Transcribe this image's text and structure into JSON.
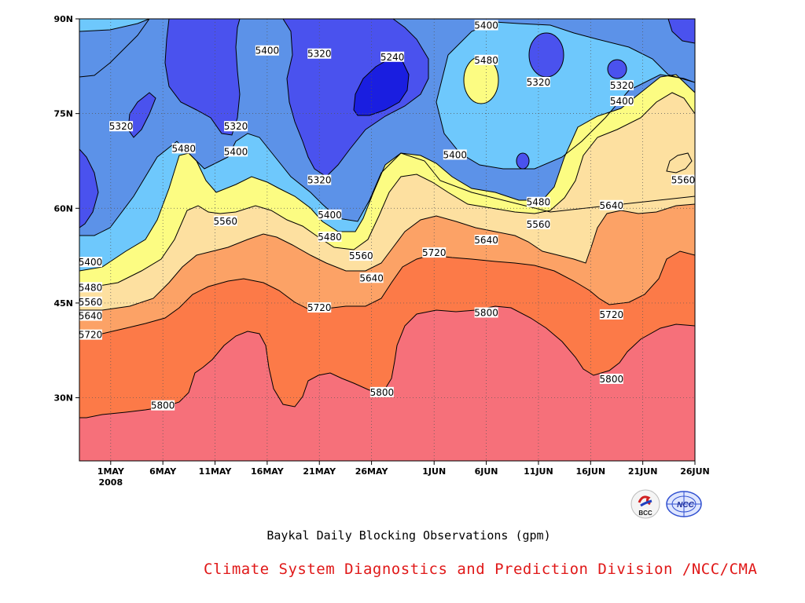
{
  "chart_data": {
    "type": "contour",
    "xaxis": {
      "ticks": [
        "1MAY",
        "6MAY",
        "11MAY",
        "16MAY",
        "21MAY",
        "26MAY",
        "1JUN",
        "6JUN",
        "11JUN",
        "16JUN",
        "21JUN",
        "26JUN"
      ],
      "year_label": "2008",
      "range": [
        "2008-04-28",
        "2008-06-26"
      ]
    },
    "yaxis": {
      "ticks": [
        "30N",
        "45N",
        "60N",
        "75N",
        "90N"
      ],
      "range": [
        20,
        90
      ]
    },
    "grid": "dotted",
    "levels": [
      5240,
      5320,
      5400,
      5480,
      5560,
      5640,
      5720,
      5800
    ],
    "contour_labels": [
      {
        "text": "5400",
        "date": "2008-06-06",
        "lat": 89
      },
      {
        "text": "5400",
        "date": "2008-05-16",
        "lat": 85
      },
      {
        "text": "5320",
        "date": "2008-05-21",
        "lat": 84.5
      },
      {
        "text": "5240",
        "date": "2008-05-28",
        "lat": 84
      },
      {
        "text": "5480",
        "date": "2008-06-06",
        "lat": 83.5
      },
      {
        "text": "5320",
        "date": "2008-06-11",
        "lat": 80
      },
      {
        "text": "5320",
        "date": "2008-06-19",
        "lat": 79.5
      },
      {
        "text": "5400",
        "date": "2008-06-19",
        "lat": 77
      },
      {
        "text": "5320",
        "date": "2008-05-02",
        "lat": 73
      },
      {
        "text": "5320",
        "date": "2008-05-13",
        "lat": 73
      },
      {
        "text": "5480",
        "date": "2008-05-08",
        "lat": 69.5
      },
      {
        "text": "5400",
        "date": "2008-05-13",
        "lat": 69
      },
      {
        "text": "5400",
        "date": "2008-06-03",
        "lat": 68.5
      },
      {
        "text": "5320",
        "date": "2008-05-21",
        "lat": 64.5
      },
      {
        "text": "5560",
        "date": "2008-06-25",
        "lat": 64.5
      },
      {
        "text": "5400",
        "date": "2008-05-22",
        "lat": 59
      },
      {
        "text": "5480",
        "date": "2008-06-11",
        "lat": 61
      },
      {
        "text": "5640",
        "date": "2008-06-18",
        "lat": 60.5
      },
      {
        "text": "5560",
        "date": "2008-05-12",
        "lat": 58
      },
      {
        "text": "5560",
        "date": "2008-06-11",
        "lat": 57.5
      },
      {
        "text": "5480",
        "date": "2008-05-22",
        "lat": 55.5
      },
      {
        "text": "5640",
        "date": "2008-06-06",
        "lat": 55
      },
      {
        "text": "5720",
        "date": "2008-06-01",
        "lat": 53
      },
      {
        "text": "5560",
        "date": "2008-05-25",
        "lat": 52.5
      },
      {
        "text": "5400",
        "date": "2008-04-29",
        "lat": 51.5
      },
      {
        "text": "5640",
        "date": "2008-05-26",
        "lat": 49
      },
      {
        "text": "5480",
        "date": "2008-04-29",
        "lat": 47.5
      },
      {
        "text": "5560",
        "date": "2008-04-29",
        "lat": 45.2
      },
      {
        "text": "5720",
        "date": "2008-05-21",
        "lat": 44.3
      },
      {
        "text": "5640",
        "date": "2008-04-29",
        "lat": 43
      },
      {
        "text": "5800",
        "date": "2008-06-06",
        "lat": 43.5
      },
      {
        "text": "5720",
        "date": "2008-06-18",
        "lat": 43.2
      },
      {
        "text": "5720",
        "date": "2008-04-29",
        "lat": 40
      },
      {
        "text": "5800",
        "date": "2008-06-18",
        "lat": 33
      },
      {
        "text": "5800",
        "date": "2008-05-27",
        "lat": 30.9
      },
      {
        "text": "5800",
        "date": "2008-05-06",
        "lat": 28.8
      }
    ],
    "xlabel": "",
    "ylabel": "",
    "title": ""
  },
  "colors": {
    "below_5240": "#1a1ee0",
    "5240_5320": "#4a52ee",
    "5320_5400": "#5c92e8",
    "5400_5480": "#6ec8fc",
    "5480_5560": "#fcfc82",
    "5560_5640": "#fde0a0",
    "5640_5720": "#fca266",
    "5720_5800": "#fc7a48",
    "above_5800": "#f6707a",
    "credit_text": "#e01818"
  },
  "caption": "Baykal Daily Blocking Observations (gpm)",
  "credit": "Climate System Diagnostics and Prediction Division /NCC/CMA",
  "logos": [
    {
      "icon": "bcc-logo-icon",
      "text": "BCC"
    },
    {
      "icon": "ncc-logo-icon",
      "text": "NCC"
    }
  ]
}
